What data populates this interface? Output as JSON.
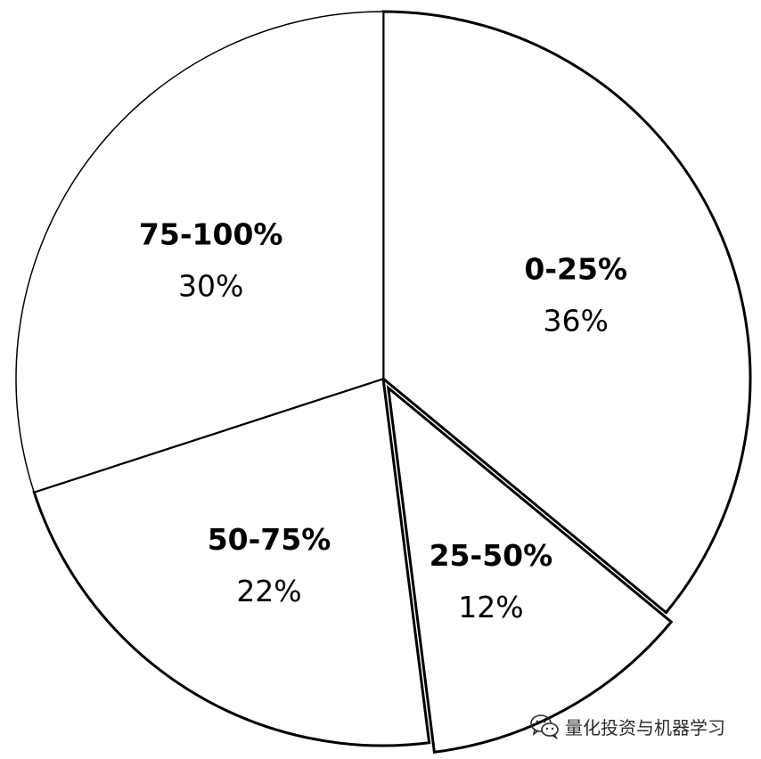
{
  "chart_data": {
    "type": "pie",
    "title": "",
    "slices": [
      {
        "label": "0-25%",
        "value": 36,
        "value_label": "36%"
      },
      {
        "label": "25-50%",
        "value": 12,
        "value_label": "12%"
      },
      {
        "label": "50-75%",
        "value": 22,
        "value_label": "22%"
      },
      {
        "label": "75-100%",
        "value": 30,
        "value_label": "30%"
      }
    ],
    "start_angle": "12 o'clock",
    "direction": "clockwise",
    "exploded_slices": [
      "25-50%"
    ],
    "legend": "none",
    "colors": {
      "fill": "#ffffff",
      "stroke": "#000000"
    }
  },
  "watermark": {
    "text": "量化投资与机器学习",
    "icon": "wechat-icon"
  }
}
